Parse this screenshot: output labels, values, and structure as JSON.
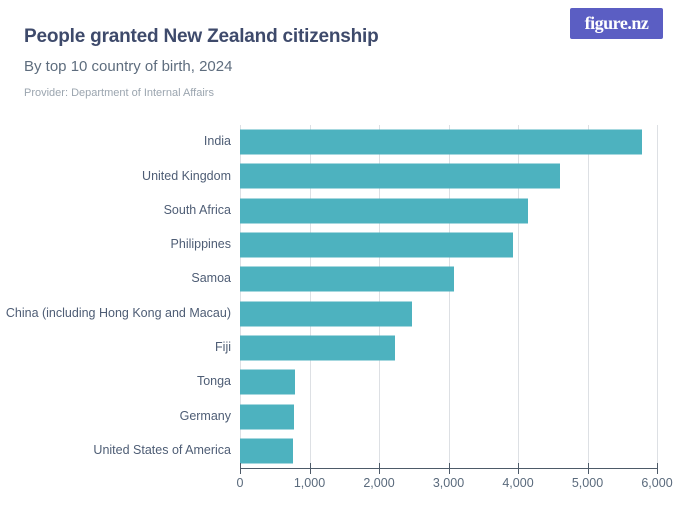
{
  "header": {
    "title": "People granted New Zealand citizenship",
    "subtitle": "By top 10 country of birth, 2024",
    "provider": "Provider: Department of Internal Affairs"
  },
  "logo": {
    "text": "figure.nz"
  },
  "colors": {
    "bar": "#4db2bf",
    "logo_background": "#5b5ec3",
    "title_text": "#3e4a6b",
    "gridline": "#dde0e4",
    "axis": "#4d5a68"
  },
  "chart_data": {
    "type": "bar",
    "orientation": "horizontal",
    "title": "People granted New Zealand citizenship",
    "subtitle": "By top 10 country of birth, 2024",
    "source": "Provider: Department of Internal Affairs",
    "categories": [
      "India",
      "United Kingdom",
      "South Africa",
      "Philippines",
      "Samoa",
      "China (including Hong Kong and Macau)",
      "Fiji",
      "Tonga",
      "Germany",
      "United States of America"
    ],
    "values": [
      5780,
      4610,
      4140,
      3930,
      3080,
      2470,
      2230,
      790,
      770,
      760
    ],
    "xlabel": "",
    "ylabel": "",
    "xlim": [
      0,
      6000
    ],
    "xticks": [
      0,
      1000,
      2000,
      3000,
      4000,
      5000,
      6000
    ],
    "xtick_labels": [
      "0",
      "1,000",
      "2,000",
      "3,000",
      "4,000",
      "5,000",
      "6,000"
    ],
    "grid": "vertical",
    "legend": false,
    "bar_color": "#4db2bf"
  }
}
